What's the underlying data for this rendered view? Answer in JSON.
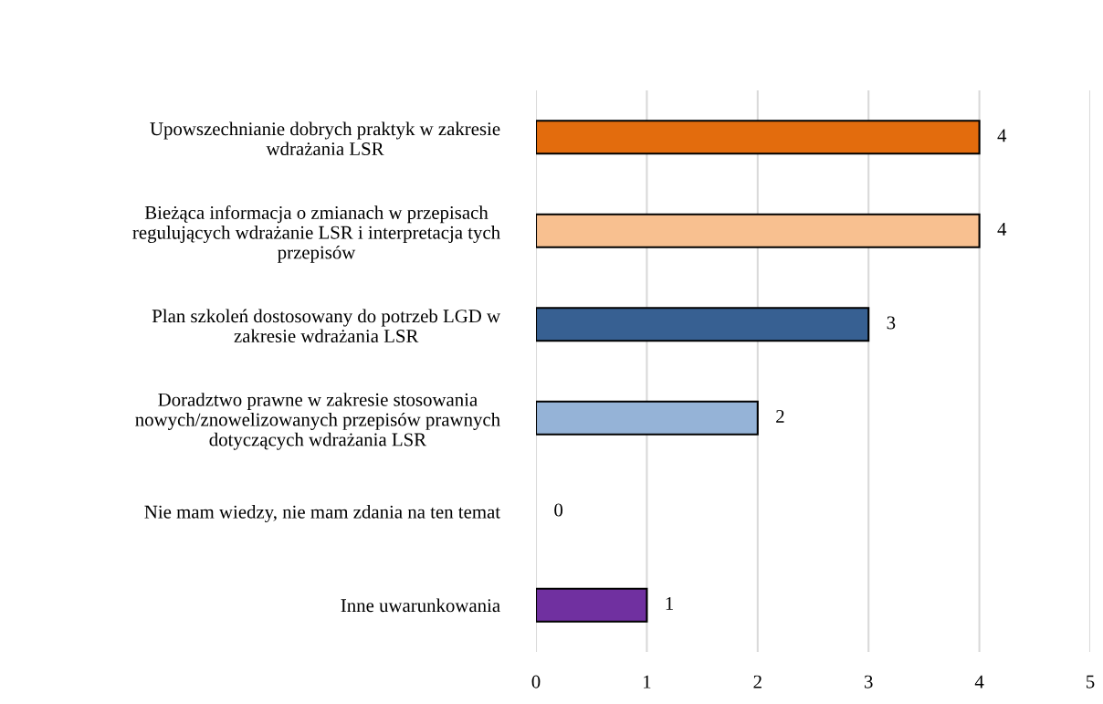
{
  "chart_data": {
    "type": "bar",
    "orientation": "horizontal",
    "categories": [
      "Upowszechnianie dobrych praktyk w zakresie\nwdrażania LSR",
      "Bieżąca informacja o zmianach w przepisach\nregulujących wdrażanie LSR i interpretacja tych\nprzepisów",
      "Plan szkoleń dostosowany do potrzeb LGD w\nzakresie wdrażania LSR",
      "Doradztwo prawne w zakresie stosowania\nnowych/znowelizowanych przepisów prawnych\ndotyczących wdrażania LSR",
      "Nie mam wiedzy, nie mam zdania na ten temat",
      "Inne uwarunkowania"
    ],
    "values": [
      4,
      4,
      3,
      2,
      0,
      1
    ],
    "colors": [
      "#e36c0d",
      "#f8c090",
      "#376092",
      "#95b3d7",
      "#7f7f7f",
      "#7030a0"
    ],
    "xlim": [
      0,
      5
    ],
    "xticks": [
      0,
      1,
      2,
      3,
      4,
      5
    ],
    "grid": "x",
    "data_labels": true
  }
}
